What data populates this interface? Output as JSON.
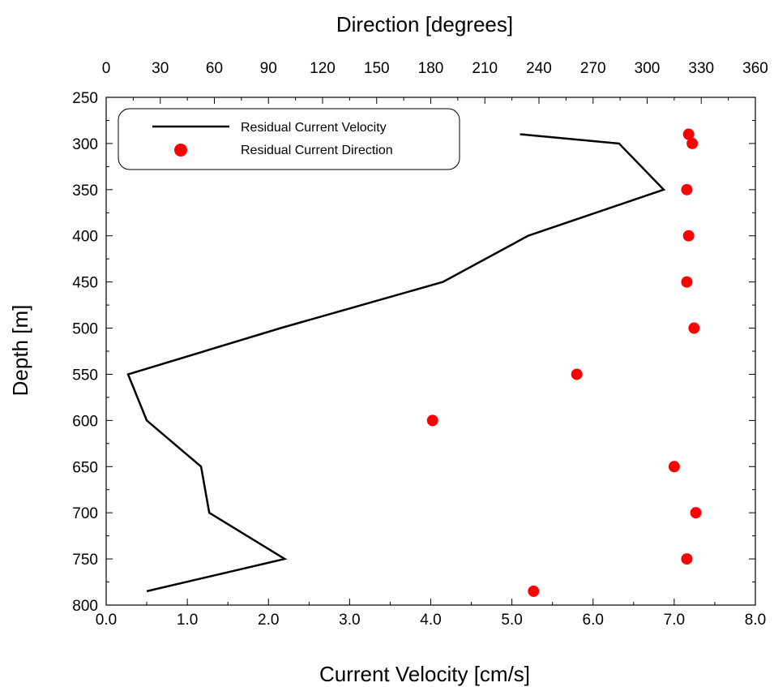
{
  "chart_data": {
    "type": "line",
    "xlabel_bottom": "Current Velocity [cm/s]",
    "xlabel_top": "Direction [degrees]",
    "ylabel": "Depth [m]",
    "velocity_axis": {
      "range": [
        0.0,
        8.0
      ],
      "ticks": [
        0.0,
        1.0,
        2.0,
        3.0,
        4.0,
        5.0,
        6.0,
        7.0,
        8.0
      ],
      "tick_labels": [
        "0.0",
        "1.0",
        "2.0",
        "3.0",
        "4.0",
        "5.0",
        "6.0",
        "7.0",
        "8.0"
      ]
    },
    "direction_axis": {
      "range": [
        0,
        360
      ],
      "ticks": [
        0,
        30,
        60,
        90,
        120,
        150,
        180,
        210,
        240,
        270,
        300,
        330,
        360
      ],
      "tick_labels": [
        "0",
        "30",
        "60",
        "90",
        "120",
        "150",
        "180",
        "210",
        "240",
        "270",
        "300",
        "330",
        "360"
      ]
    },
    "depth_axis": {
      "range": [
        250,
        800
      ],
      "inverted": true,
      "ticks": [
        250,
        300,
        350,
        400,
        450,
        500,
        550,
        600,
        650,
        700,
        750,
        800
      ],
      "tick_labels": [
        "250",
        "300",
        "350",
        "400",
        "450",
        "500",
        "550",
        "600",
        "650",
        "700",
        "750",
        "800"
      ]
    },
    "grid": false,
    "legend_position": "top-left",
    "series": [
      {
        "name": "Residual Current Velocity",
        "kind": "line",
        "color": "#000000",
        "points": [
          {
            "velocity": 5.1,
            "depth": 290
          },
          {
            "velocity": 6.32,
            "depth": 300
          },
          {
            "velocity": 6.87,
            "depth": 350
          },
          {
            "velocity": 5.2,
            "depth": 400
          },
          {
            "velocity": 4.15,
            "depth": 450
          },
          {
            "velocity": 2.15,
            "depth": 500
          },
          {
            "velocity": 0.27,
            "depth": 550
          },
          {
            "velocity": 0.5,
            "depth": 600
          },
          {
            "velocity": 1.17,
            "depth": 650
          },
          {
            "velocity": 1.27,
            "depth": 700
          },
          {
            "velocity": 2.2,
            "depth": 750
          },
          {
            "velocity": 0.5,
            "depth": 785
          }
        ]
      },
      {
        "name": "Residual Current Direction",
        "kind": "scatter",
        "color": "#ff0000",
        "points": [
          {
            "direction": 323,
            "depth": 290
          },
          {
            "direction": 325,
            "depth": 300
          },
          {
            "direction": 322,
            "depth": 350
          },
          {
            "direction": 323,
            "depth": 400
          },
          {
            "direction": 322,
            "depth": 450
          },
          {
            "direction": 326,
            "depth": 500
          },
          {
            "direction": 261,
            "depth": 550
          },
          {
            "direction": 181,
            "depth": 600
          },
          {
            "direction": 315,
            "depth": 650
          },
          {
            "direction": 327,
            "depth": 700
          },
          {
            "direction": 322,
            "depth": 750
          },
          {
            "direction": 237,
            "depth": 785
          }
        ]
      }
    ]
  }
}
